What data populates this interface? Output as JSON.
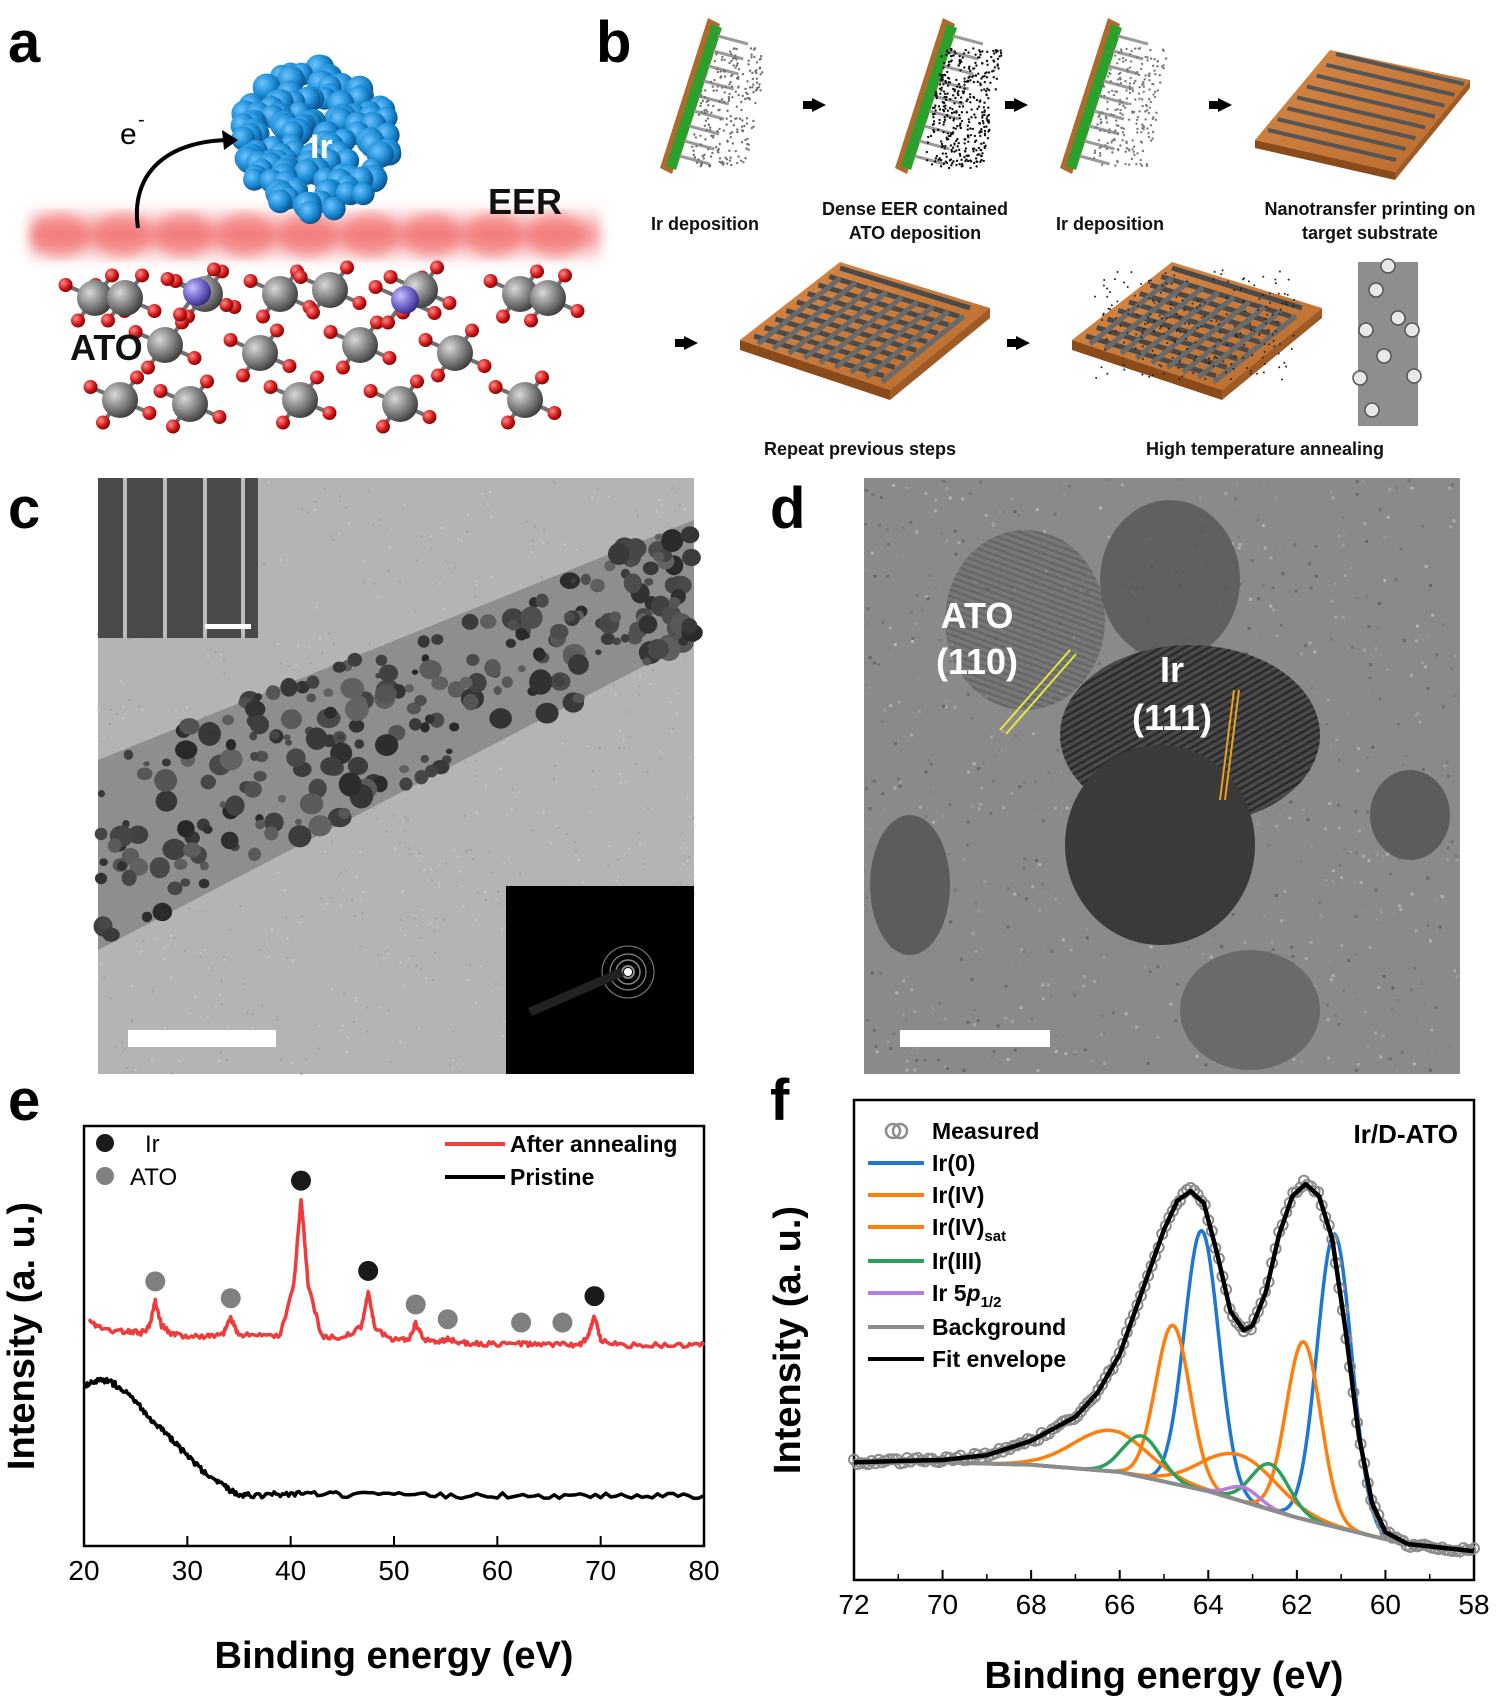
{
  "panels": {
    "a": {
      "letter": "a",
      "electron": "e",
      "electron_sup": "-",
      "particle_label": "Ir",
      "layer_label": "EER",
      "support_label": "ATO"
    },
    "b": {
      "letter": "b",
      "steps": [
        {
          "line1": "Ir deposition",
          "line2": ""
        },
        {
          "line1": "Dense EER contained",
          "line2": "ATO deposition"
        },
        {
          "line1": "Ir deposition",
          "line2": ""
        },
        {
          "line1": "Nanotransfer printing on",
          "line2": "target substrate"
        },
        {
          "line1": "Repeat previous steps",
          "line2": ""
        },
        {
          "line1": "High temperature annealing",
          "line2": ""
        }
      ]
    },
    "c": {
      "letter": "c"
    },
    "d": {
      "letter": "d",
      "label_ato": "ATO",
      "label_ato_plane": "(110)",
      "label_ir": "Ir",
      "label_ir_plane": "(111)"
    }
  },
  "chart_data": [
    {
      "panel": "e",
      "type": "line",
      "xlabel": "Binding energy (eV)",
      "ylabel": "Intensity (a. u.)",
      "xlim": [
        20,
        80
      ],
      "xticks": [
        20,
        30,
        40,
        50,
        60,
        70,
        80
      ],
      "ylim": [
        0,
        1
      ],
      "legend": {
        "placement": "top-right"
      },
      "marker_legend": [
        {
          "name": "Ir",
          "color": "#1a1a1a"
        },
        {
          "name": "ATO",
          "color": "#808080"
        }
      ],
      "series": [
        {
          "name": "After annealing",
          "color": "#ee3b3b",
          "x": [
            20.5,
            22,
            24,
            25.5,
            26.3,
            26.9,
            27.5,
            28.5,
            30,
            32,
            33.5,
            34.2,
            35,
            37,
            39,
            40.3,
            41,
            41.7,
            43,
            45,
            46.8,
            47.5,
            48.2,
            50,
            51.5,
            52.1,
            52.8,
            54,
            55.2,
            56.5,
            58,
            60,
            62.3,
            64,
            66.3,
            68,
            68.8,
            69.4,
            70,
            72,
            75,
            78,
            80
          ],
          "y": [
            0.535,
            0.515,
            0.51,
            0.508,
            0.52,
            0.583,
            0.525,
            0.505,
            0.5,
            0.5,
            0.505,
            0.543,
            0.502,
            0.5,
            0.502,
            0.62,
            0.83,
            0.62,
            0.5,
            0.497,
            0.52,
            0.603,
            0.515,
            0.49,
            0.495,
            0.53,
            0.494,
            0.485,
            0.492,
            0.484,
            0.482,
            0.48,
            0.482,
            0.479,
            0.48,
            0.479,
            0.5,
            0.548,
            0.49,
            0.478,
            0.478,
            0.478,
            0.478
          ]
        },
        {
          "name": "Pristine",
          "color": "#000000",
          "x": [
            20,
            21,
            22,
            23,
            24,
            25,
            26,
            27,
            28,
            29,
            30,
            31,
            32,
            33,
            34,
            35,
            36,
            38,
            40,
            42,
            45,
            50,
            55,
            60,
            65,
            70,
            75,
            80
          ],
          "y": [
            0.38,
            0.39,
            0.395,
            0.385,
            0.37,
            0.345,
            0.315,
            0.29,
            0.265,
            0.24,
            0.215,
            0.19,
            0.165,
            0.15,
            0.135,
            0.125,
            0.12,
            0.122,
            0.125,
            0.123,
            0.122,
            0.12,
            0.12,
            0.12,
            0.12,
            0.12,
            0.12,
            0.12
          ]
        }
      ],
      "markers": [
        {
          "x": 26.9,
          "y": 0.63,
          "phase": "ATO"
        },
        {
          "x": 34.2,
          "y": 0.59,
          "phase": "ATO"
        },
        {
          "x": 41.0,
          "y": 0.87,
          "phase": "Ir"
        },
        {
          "x": 47.5,
          "y": 0.655,
          "phase": "Ir"
        },
        {
          "x": 52.1,
          "y": 0.575,
          "phase": "ATO"
        },
        {
          "x": 55.2,
          "y": 0.54,
          "phase": "ATO"
        },
        {
          "x": 62.3,
          "y": 0.532,
          "phase": "ATO"
        },
        {
          "x": 66.3,
          "y": 0.532,
          "phase": "ATO"
        },
        {
          "x": 69.4,
          "y": 0.595,
          "phase": "Ir"
        }
      ]
    },
    {
      "panel": "f",
      "type": "line",
      "title": "Ir/D-ATO",
      "xlabel": "Binding energy (eV)",
      "ylabel": "Intensity (a. u.)",
      "xlim": [
        72,
        58
      ],
      "xticks": [
        72,
        70,
        68,
        66,
        64,
        62,
        60,
        58
      ],
      "ylim": [
        0,
        1
      ],
      "legend": {
        "placement": "top-left"
      },
      "series": [
        {
          "name": "Measured",
          "color": "#8c8c8c",
          "style": "circles",
          "x": [
            72,
            71,
            70,
            69,
            68,
            67,
            66.5,
            66,
            65.5,
            65,
            64.7,
            64.4,
            64.1,
            63.8,
            63.5,
            63.2,
            63,
            62.7,
            62.4,
            62.1,
            61.8,
            61.5,
            61.2,
            60.9,
            60.6,
            60.3,
            60,
            59.5,
            59,
            58.5,
            58
          ],
          "y": [
            0.245,
            0.248,
            0.25,
            0.26,
            0.29,
            0.34,
            0.39,
            0.47,
            0.6,
            0.73,
            0.79,
            0.815,
            0.79,
            0.68,
            0.56,
            0.52,
            0.53,
            0.6,
            0.72,
            0.8,
            0.83,
            0.805,
            0.71,
            0.52,
            0.3,
            0.16,
            0.1,
            0.075,
            0.07,
            0.065,
            0.06
          ]
        },
        {
          "name": "Ir(0)",
          "color": "#1f77d4"
        },
        {
          "name": "Ir(IV)",
          "color": "#ff7f0e"
        },
        {
          "name": "Ir(IV)",
          "name_sub": "sat",
          "color": "#ff7f0e"
        },
        {
          "name": "Ir(III)",
          "color": "#2ca05a"
        },
        {
          "name": "Ir 5",
          "name_ital": "p",
          "name_sub": "1/2",
          "color": "#b57edc"
        },
        {
          "name": "Background",
          "color": "#8c8c8c"
        },
        {
          "name": "Fit envelope",
          "color": "#000000",
          "x": [
            72,
            71,
            70,
            69,
            68,
            67,
            66.5,
            66,
            65.5,
            65,
            64.7,
            64.4,
            64.1,
            63.8,
            63.5,
            63.2,
            63,
            62.7,
            62.4,
            62.1,
            61.8,
            61.5,
            61.2,
            60.9,
            60.6,
            60.3,
            60,
            59.5,
            59,
            58.5,
            58
          ],
          "y": [
            0.245,
            0.248,
            0.25,
            0.26,
            0.29,
            0.34,
            0.39,
            0.47,
            0.6,
            0.73,
            0.79,
            0.81,
            0.785,
            0.68,
            0.56,
            0.52,
            0.53,
            0.6,
            0.72,
            0.8,
            0.825,
            0.8,
            0.71,
            0.52,
            0.3,
            0.16,
            0.1,
            0.075,
            0.07,
            0.065,
            0.06
          ]
        }
      ],
      "components": [
        {
          "name": "Ir(0) 4f7/2",
          "color": "#1f77d4",
          "center": 61.15,
          "height": 0.61,
          "width": 0.55
        },
        {
          "name": "Ir(0) 4f5/2",
          "color": "#1f77d4",
          "center": 64.15,
          "height": 0.54,
          "width": 0.55
        },
        {
          "name": "Ir(IV) 4f7/2",
          "color": "#ff7f0e",
          "center": 61.85,
          "height": 0.37,
          "width": 0.55
        },
        {
          "name": "Ir(IV) 4f5/2",
          "color": "#ff7f0e",
          "center": 64.8,
          "height": 0.33,
          "width": 0.55
        },
        {
          "name": "Ir(IV)sat a",
          "color": "#ff7f0e",
          "center": 63.3,
          "height": 0.095,
          "width": 1.2
        },
        {
          "name": "Ir(IV)sat b",
          "color": "#ff7f0e",
          "center": 66.2,
          "height": 0.085,
          "width": 1.2
        },
        {
          "name": "Ir(III) a",
          "color": "#2ca05a",
          "center": 62.6,
          "height": 0.095,
          "width": 0.6
        },
        {
          "name": "Ir(III) b",
          "color": "#2ca05a",
          "center": 65.5,
          "height": 0.085,
          "width": 0.6
        },
        {
          "name": "Ir 5p1/2",
          "color": "#b57edc",
          "center": 63.2,
          "height": 0.03,
          "width": 0.5
        }
      ],
      "background": {
        "x": [
          72,
          70,
          68,
          66,
          64,
          62,
          60,
          58
        ],
        "y": [
          0.245,
          0.245,
          0.24,
          0.225,
          0.185,
          0.13,
          0.085,
          0.06
        ]
      }
    }
  ]
}
